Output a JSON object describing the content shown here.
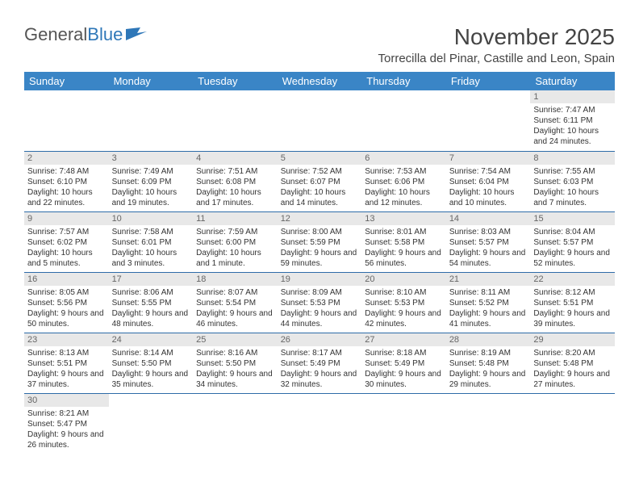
{
  "brand": {
    "part1": "General",
    "part2": "Blue"
  },
  "title": "November 2025",
  "location": "Torrecilla del Pinar, Castille and Leon, Spain",
  "headers": [
    "Sunday",
    "Monday",
    "Tuesday",
    "Wednesday",
    "Thursday",
    "Friday",
    "Saturday"
  ],
  "header_bg": "#3a85c6",
  "weeks": [
    [
      null,
      null,
      null,
      null,
      null,
      null,
      {
        "n": "1",
        "sr": "7:47 AM",
        "ss": "6:11 PM",
        "dl": "10 hours and 24 minutes."
      }
    ],
    [
      {
        "n": "2",
        "sr": "7:48 AM",
        "ss": "6:10 PM",
        "dl": "10 hours and 22 minutes."
      },
      {
        "n": "3",
        "sr": "7:49 AM",
        "ss": "6:09 PM",
        "dl": "10 hours and 19 minutes."
      },
      {
        "n": "4",
        "sr": "7:51 AM",
        "ss": "6:08 PM",
        "dl": "10 hours and 17 minutes."
      },
      {
        "n": "5",
        "sr": "7:52 AM",
        "ss": "6:07 PM",
        "dl": "10 hours and 14 minutes."
      },
      {
        "n": "6",
        "sr": "7:53 AM",
        "ss": "6:06 PM",
        "dl": "10 hours and 12 minutes."
      },
      {
        "n": "7",
        "sr": "7:54 AM",
        "ss": "6:04 PM",
        "dl": "10 hours and 10 minutes."
      },
      {
        "n": "8",
        "sr": "7:55 AM",
        "ss": "6:03 PM",
        "dl": "10 hours and 7 minutes."
      }
    ],
    [
      {
        "n": "9",
        "sr": "7:57 AM",
        "ss": "6:02 PM",
        "dl": "10 hours and 5 minutes."
      },
      {
        "n": "10",
        "sr": "7:58 AM",
        "ss": "6:01 PM",
        "dl": "10 hours and 3 minutes."
      },
      {
        "n": "11",
        "sr": "7:59 AM",
        "ss": "6:00 PM",
        "dl": "10 hours and 1 minute."
      },
      {
        "n": "12",
        "sr": "8:00 AM",
        "ss": "5:59 PM",
        "dl": "9 hours and 59 minutes."
      },
      {
        "n": "13",
        "sr": "8:01 AM",
        "ss": "5:58 PM",
        "dl": "9 hours and 56 minutes."
      },
      {
        "n": "14",
        "sr": "8:03 AM",
        "ss": "5:57 PM",
        "dl": "9 hours and 54 minutes."
      },
      {
        "n": "15",
        "sr": "8:04 AM",
        "ss": "5:57 PM",
        "dl": "9 hours and 52 minutes."
      }
    ],
    [
      {
        "n": "16",
        "sr": "8:05 AM",
        "ss": "5:56 PM",
        "dl": "9 hours and 50 minutes."
      },
      {
        "n": "17",
        "sr": "8:06 AM",
        "ss": "5:55 PM",
        "dl": "9 hours and 48 minutes."
      },
      {
        "n": "18",
        "sr": "8:07 AM",
        "ss": "5:54 PM",
        "dl": "9 hours and 46 minutes."
      },
      {
        "n": "19",
        "sr": "8:09 AM",
        "ss": "5:53 PM",
        "dl": "9 hours and 44 minutes."
      },
      {
        "n": "20",
        "sr": "8:10 AM",
        "ss": "5:53 PM",
        "dl": "9 hours and 42 minutes."
      },
      {
        "n": "21",
        "sr": "8:11 AM",
        "ss": "5:52 PM",
        "dl": "9 hours and 41 minutes."
      },
      {
        "n": "22",
        "sr": "8:12 AM",
        "ss": "5:51 PM",
        "dl": "9 hours and 39 minutes."
      }
    ],
    [
      {
        "n": "23",
        "sr": "8:13 AM",
        "ss": "5:51 PM",
        "dl": "9 hours and 37 minutes."
      },
      {
        "n": "24",
        "sr": "8:14 AM",
        "ss": "5:50 PM",
        "dl": "9 hours and 35 minutes."
      },
      {
        "n": "25",
        "sr": "8:16 AM",
        "ss": "5:50 PM",
        "dl": "9 hours and 34 minutes."
      },
      {
        "n": "26",
        "sr": "8:17 AM",
        "ss": "5:49 PM",
        "dl": "9 hours and 32 minutes."
      },
      {
        "n": "27",
        "sr": "8:18 AM",
        "ss": "5:49 PM",
        "dl": "9 hours and 30 minutes."
      },
      {
        "n": "28",
        "sr": "8:19 AM",
        "ss": "5:48 PM",
        "dl": "9 hours and 29 minutes."
      },
      {
        "n": "29",
        "sr": "8:20 AM",
        "ss": "5:48 PM",
        "dl": "9 hours and 27 minutes."
      }
    ],
    [
      {
        "n": "30",
        "sr": "8:21 AM",
        "ss": "5:47 PM",
        "dl": "9 hours and 26 minutes."
      },
      null,
      null,
      null,
      null,
      null,
      null
    ]
  ],
  "labels": {
    "sunrise": "Sunrise:",
    "sunset": "Sunset:",
    "daylight": "Daylight:"
  }
}
